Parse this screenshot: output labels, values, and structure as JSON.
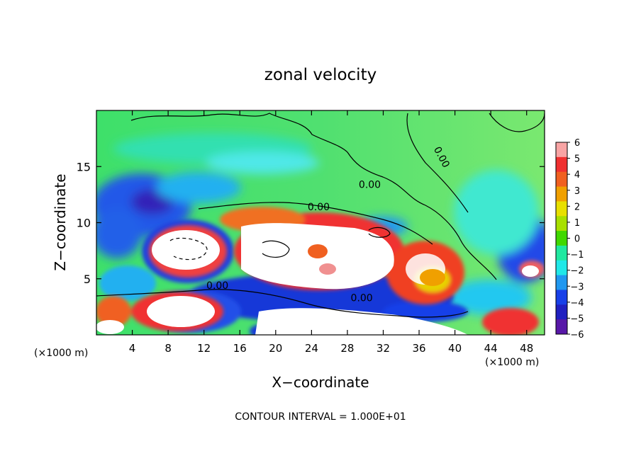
{
  "chart_data": {
    "type": "heatmap",
    "title": "zonal velocity",
    "xlabel": "X−coordinate",
    "ylabel": "Z−coordinate",
    "x_unit_left": "(×1000 m)",
    "x_unit_right": "(×1000 m)",
    "footer": "CONTOUR INTERVAL = 1.000E+01",
    "xlim": [
      0,
      50
    ],
    "ylim": [
      0,
      20
    ],
    "x_ticks": [
      4,
      8,
      12,
      16,
      20,
      24,
      28,
      32,
      36,
      40,
      44,
      48
    ],
    "y_ticks": [
      5,
      10,
      15
    ],
    "colorbar": {
      "ticks": [
        6,
        5,
        4,
        3,
        2,
        1,
        0,
        -1,
        -2,
        -3,
        -4,
        -5,
        -6
      ],
      "colors": [
        "#f8a4a4",
        "#f03030",
        "#f06020",
        "#f0a000",
        "#e8e000",
        "#a8e000",
        "#40d800",
        "#20e8a0",
        "#20e8e8",
        "#2098f0",
        "#1840e8",
        "#2020c0",
        "#5818a8"
      ]
    },
    "contour_labels": [
      {
        "text": "0.00",
        "x": 13.5,
        "y": 4.1
      },
      {
        "text": "0.00",
        "x": 29.6,
        "y": 3.0
      },
      {
        "text": "0.00",
        "x": 38.2,
        "y": 15.7,
        "rotate": 62
      },
      {
        "text": "0.00",
        "x": 30.5,
        "y": 13.1
      },
      {
        "text": "0.00",
        "x": 24.8,
        "y": 11.1
      }
    ]
  }
}
